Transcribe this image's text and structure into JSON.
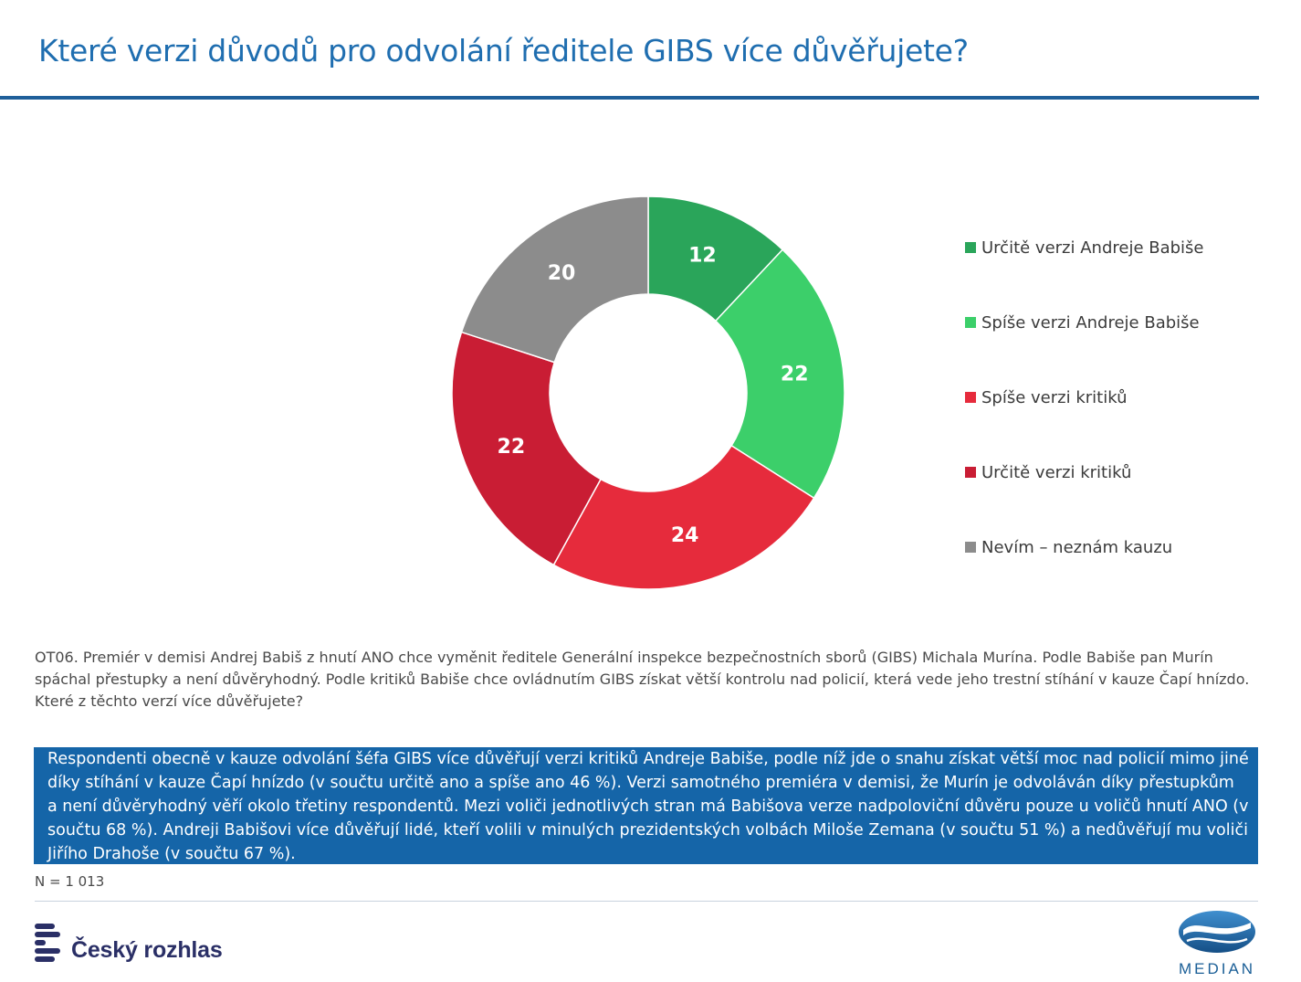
{
  "title": "Které verzi důvodů pro odvolání ředitele GIBS více důvěřujete?",
  "chart_data": {
    "type": "pie",
    "style": "donut",
    "categories": [
      "Určitě verzi Andreje Babiše",
      "Spíše verzi Andreje Babiše",
      "Spíše verzi kritiků",
      "Určitě verzi kritiků",
      "Nevím – neznám kauzu"
    ],
    "values": [
      12,
      22,
      24,
      22,
      20
    ],
    "colors": [
      "#2aa55a",
      "#3ccf6a",
      "#e62b3c",
      "#c91d34",
      "#8c8c8c"
    ],
    "legend_position": "right"
  },
  "question": "OT06. Premiér v demisi Andrej Babiš z hnutí ANO chce vyměnit ředitele Generální inspekce bezpečnostních sborů (GIBS) Michala Murína. Podle Babiše pan Murín spáchal přestupky a není důvěryhodný. Podle kritiků Babiše chce ovládnutím GIBS získat větší kontrolu nad policií, která vede jeho trestní stíhání v kauze Čapí hnízdo. Které z těchto verzí více důvěřujete?",
  "summary": "Respondenti obecně v kauze odvolání šéfa GIBS více důvěřují verzi kritiků Andreje Babiše, podle níž jde o snahu získat větší moc nad policií mimo jiné díky stíhání v kauze Čapí hnízdo (v součtu určitě ano a spíše ano 46 %). Verzi samotného premiéra v demisi, že Murín je odvoláván díky přestupkům a není důvěryhodný věří okolo třetiny respondentů. Mezi voliči jednotlivých stran má Babišova verze nadpoloviční důvěru pouze u voličů hnutí ANO (v součtu 68 %). Andreji Babišovi více důvěřují lidé, kteří volili v minulých prezidentských volbách Miloše Zemana (v součtu 51 %) a nedůvěřují mu voliči Jiřího Drahoše (v součtu 67 %).",
  "sample_note": "N = 1 013",
  "footer": {
    "left_logo_text": "Český rozhlas",
    "right_logo_text": "MEDIAN",
    "brand_colors": [
      "#2a2f66",
      "#1b5f97"
    ]
  }
}
